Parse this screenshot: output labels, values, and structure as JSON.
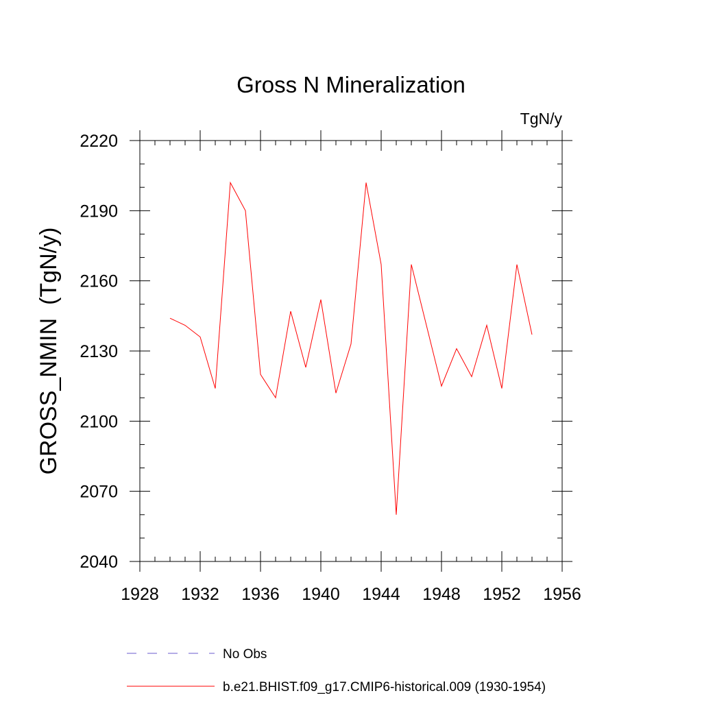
{
  "chart_data": {
    "type": "line",
    "title": "Gross N Mineralization",
    "units_label": "TgN/y",
    "ylabel": "GROSS_NMIN  (TgN/y)",
    "xlabel": "",
    "xlim": [
      1928,
      1956
    ],
    "ylim": [
      2040,
      2220
    ],
    "x_ticks": [
      1928,
      1932,
      1936,
      1940,
      1944,
      1948,
      1952,
      1956
    ],
    "y_ticks": [
      2040,
      2070,
      2100,
      2130,
      2160,
      2190,
      2220
    ],
    "x_minor_step": 1,
    "y_minor_step": 10,
    "grid": false,
    "series": [
      {
        "name": "b.e21.BHIST.f09_g17.CMIP6-historical.009 (1930-1954)",
        "color": "#ff0000",
        "style": "solid",
        "x": [
          1930,
          1931,
          1932,
          1933,
          1934,
          1935,
          1936,
          1937,
          1938,
          1939,
          1940,
          1941,
          1942,
          1943,
          1944,
          1945,
          1946,
          1947,
          1948,
          1949,
          1950,
          1951,
          1952,
          1953,
          1954
        ],
        "y": [
          2144,
          2141,
          2136,
          2114,
          2202,
          2190,
          2120,
          2110,
          2147,
          2123,
          2152,
          2112,
          2133,
          2202,
          2167,
          2060,
          2167,
          2141,
          2115,
          2131,
          2119,
          2141,
          2114,
          2167,
          2137
        ]
      }
    ],
    "legend": {
      "placement": "bottom",
      "entries": [
        {
          "label": "No Obs",
          "color": "#6a5acd",
          "style": "dashed"
        },
        {
          "label": "b.e21.BHIST.f09_g17.CMIP6-historical.009 (1930-1954)",
          "color": "#ff0000",
          "style": "solid"
        }
      ]
    }
  }
}
